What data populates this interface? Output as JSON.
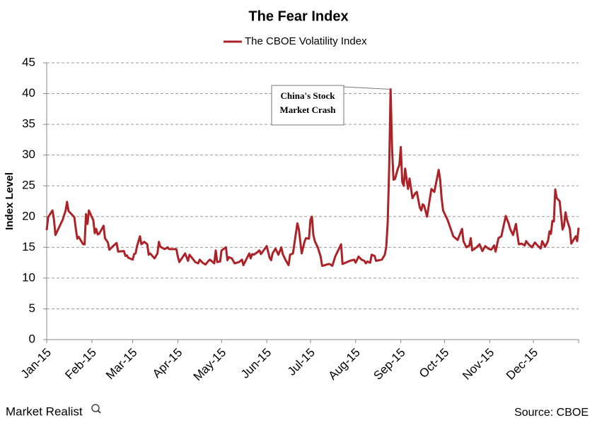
{
  "chart_data": {
    "type": "line",
    "title": "The Fear  Index",
    "y_label": "Index Level",
    "source": "Source: CBOE",
    "brand": "Market Realist",
    "annotation": [
      "China's Stock",
      "Market Crash"
    ],
    "xlim": [
      1,
      366
    ],
    "xticks": [
      {
        "value": 1,
        "label": "Jan-15"
      },
      {
        "value": 32,
        "label": "Feb-15"
      },
      {
        "value": 60,
        "label": "Mar-15"
      },
      {
        "value": 91,
        "label": "Apr-15"
      },
      {
        "value": 121,
        "label": "May-15"
      },
      {
        "value": 152,
        "label": "Jun-15"
      },
      {
        "value": 182,
        "label": "Jul-15"
      },
      {
        "value": 213,
        "label": "Aug-15"
      },
      {
        "value": 244,
        "label": "Sep-15"
      },
      {
        "value": 274,
        "label": "Oct-15"
      },
      {
        "value": 305,
        "label": "Nov-15"
      },
      {
        "value": 335,
        "label": "Dec-15"
      }
    ],
    "ylim": [
      0,
      45
    ],
    "yticks": [
      0,
      5,
      10,
      15,
      20,
      25,
      30,
      35,
      40,
      45
    ],
    "grid": true,
    "legend": "top",
    "x": [
      1,
      2,
      5,
      6,
      7,
      12,
      14,
      15,
      16,
      20,
      21,
      22,
      23,
      26,
      27,
      28,
      29,
      30,
      33,
      34,
      35,
      36,
      37,
      40,
      41,
      43,
      44,
      47,
      49,
      50,
      54,
      55,
      56,
      57,
      60,
      61,
      62,
      63,
      64,
      65,
      66,
      68,
      70,
      71,
      72,
      75,
      77,
      78,
      79,
      82,
      84,
      85,
      90,
      91,
      92,
      96,
      97,
      98,
      99,
      100,
      103,
      105,
      106,
      108,
      110,
      112,
      113,
      116,
      117,
      118,
      120,
      121,
      124,
      125,
      126,
      128,
      130,
      133,
      135,
      136,
      140,
      141,
      142,
      143,
      145,
      147,
      148,
      152,
      154,
      155,
      156,
      158,
      160,
      162,
      163,
      165,
      167,
      168,
      170,
      173,
      174,
      175,
      176,
      178,
      179,
      181,
      182,
      183,
      184,
      185,
      187,
      189,
      190,
      192,
      193,
      195,
      197,
      199,
      201,
      203,
      204,
      206,
      209,
      212,
      213,
      215,
      217,
      219,
      220,
      221,
      223,
      224,
      226,
      227,
      229,
      231,
      233,
      234,
      235,
      236,
      237,
      238,
      239,
      240,
      242,
      243,
      244,
      245,
      246,
      247,
      248,
      249,
      250,
      252,
      254,
      255,
      257,
      258,
      259,
      260,
      262,
      265,
      267,
      270,
      271,
      272,
      273,
      276,
      279,
      280,
      283,
      286,
      287,
      289,
      291,
      292,
      293,
      296,
      298,
      300,
      302,
      304,
      306,
      308,
      309,
      311,
      313,
      316,
      318,
      319,
      321,
      323,
      324,
      325,
      327,
      329,
      330,
      332,
      334,
      336,
      337,
      340,
      341,
      343,
      345,
      346,
      347,
      348,
      349,
      350,
      351,
      353,
      355,
      356,
      357,
      358,
      360,
      361,
      364,
      365,
      366
    ],
    "series": [
      {
        "name": "The CBOE Volatility Index",
        "color": "#ab2328",
        "values": [
          17.8,
          19.9,
          21.0,
          19.5,
          17.0,
          19.5,
          21.0,
          22.4,
          20.9,
          19.9,
          18.0,
          16.4,
          16.7,
          15.5,
          15.5,
          20.4,
          18.8,
          21.0,
          19.4,
          17.3,
          18.0,
          17.1,
          17.2,
          18.5,
          16.5,
          15.8,
          14.6,
          15.3,
          15.7,
          14.3,
          14.4,
          13.6,
          13.7,
          13.3,
          13.0,
          13.9,
          14.0,
          15.2,
          16.0,
          16.8,
          15.5,
          15.9,
          15.5,
          13.8,
          14.0,
          13.2,
          14.0,
          15.9,
          15.1,
          14.7,
          15.0,
          14.7,
          14.7,
          13.5,
          12.6,
          14.0,
          13.4,
          12.8,
          13.8,
          13.5,
          12.6,
          12.4,
          13.0,
          12.5,
          12.2,
          12.8,
          13.0,
          12.4,
          14.5,
          12.6,
          12.7,
          14.5,
          15.0,
          12.9,
          13.4,
          13.2,
          12.4,
          12.6,
          13.0,
          12.1,
          14.0,
          13.2,
          13.9,
          13.8,
          14.1,
          14.5,
          13.9,
          15.2,
          13.3,
          12.9,
          14.0,
          14.8,
          13.8,
          15.0,
          13.9,
          12.9,
          12.1,
          13.8,
          14.0,
          18.9,
          18.0,
          16.0,
          14.0,
          16.0,
          16.5,
          16.4,
          19.5,
          20.0,
          17.0,
          16.0,
          15.0,
          13.5,
          12.0,
          12.1,
          12.2,
          12.3,
          12.0,
          13.5,
          14.5,
          15.5,
          12.3,
          12.5,
          12.8,
          13.0,
          12.5,
          13.5,
          13.0,
          12.8,
          12.4,
          12.7,
          12.5,
          13.8,
          13.6,
          12.8,
          12.9,
          13.0,
          13.8,
          15.0,
          19.0,
          28.0,
          40.7,
          31.0,
          26.0,
          26.1,
          27.8,
          28.4,
          31.3,
          25.6,
          25.0,
          27.8,
          26.0,
          24.5,
          26.2,
          23.0,
          23.8,
          24.0,
          21.5,
          21.0,
          22.0,
          21.8,
          20.0,
          24.5,
          24.0,
          27.6,
          26.0,
          23.0,
          21.0,
          19.5,
          17.5,
          16.8,
          16.2,
          18.0,
          16.0,
          15.0,
          15.3,
          16.5,
          14.5,
          15.0,
          15.5,
          14.4,
          15.2,
          14.8,
          14.6,
          15.3,
          14.3,
          16.5,
          16.8,
          20.1,
          18.9,
          18.0,
          17.0,
          18.8,
          17.0,
          15.5,
          15.6,
          15.3,
          16.0,
          15.4,
          15.0,
          15.8,
          15.5,
          14.8,
          16.0,
          15.1,
          16.0,
          17.6,
          17.2,
          19.3,
          19.2,
          24.4,
          23.0,
          22.5,
          17.9,
          18.5,
          20.7,
          19.5,
          18.0,
          15.6,
          16.8,
          16.0,
          18.2
        ]
      }
    ]
  }
}
